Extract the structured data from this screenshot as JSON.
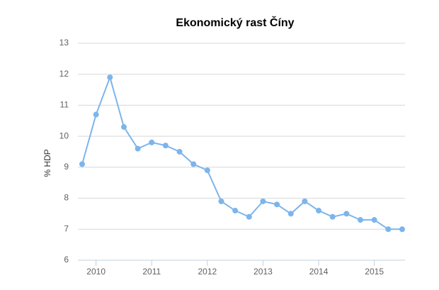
{
  "chart_data": {
    "type": "line",
    "title": "Ekonomický rast Číny",
    "y_label": "% HDP",
    "categories": [
      null,
      "2010",
      null,
      null,
      null,
      "2011",
      null,
      null,
      null,
      "2012",
      null,
      null,
      null,
      "2013",
      null,
      null,
      null,
      "2014",
      null,
      null,
      null,
      "2015",
      null,
      null
    ],
    "series": [
      {
        "name": "% HDP",
        "color": "#7cb5ec",
        "values": [
          9.1,
          10.7,
          11.9,
          10.3,
          9.6,
          9.8,
          9.7,
          9.5,
          9.1,
          8.9,
          7.9,
          7.6,
          7.4,
          7.9,
          7.8,
          7.5,
          7.9,
          7.6,
          7.4,
          7.5,
          7.3,
          7.3,
          7.0,
          7.0
        ]
      }
    ],
    "ylim": [
      6,
      13
    ],
    "yticks": [
      6,
      7,
      8,
      9,
      10,
      11,
      12,
      13
    ],
    "grid": true
  }
}
